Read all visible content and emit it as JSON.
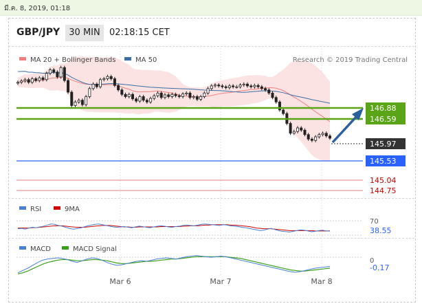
{
  "topbar": {
    "date_text": "มี.ค. 8, 2019, 01:18"
  },
  "header": {
    "symbol": "GBP/JPY",
    "timeframe": "30 MIN",
    "time": "02:18:15 CET"
  },
  "legend": {
    "ma20_label": "MA 20 + Bollinger Bands",
    "ma50_label": "MA 50",
    "credit": "Research © 2019 Trading Central",
    "rsi_label": "RSI",
    "rsi_ma_label": "9MA",
    "macd_label": "MACD",
    "macd_signal_label": "MACD Signal"
  },
  "colors": {
    "green_level": "#5aa517",
    "blue_level": "#2962ff",
    "red_level": "#cc0000",
    "current_price_bg": "#333333",
    "ma20": "#f08080",
    "ma50": "#3a6ea5",
    "arrow": "#2c5f9e",
    "rsi": "#4a7fd4",
    "rsi_ma": "#cc0000",
    "macd": "#4a7fd4",
    "macd_signal": "#3aa017"
  },
  "chart_data": [
    {
      "type": "line",
      "title": "GBP/JPY",
      "x_tick_labels": [
        "Mar 6",
        "Mar 7",
        "Mar 8"
      ],
      "ylim": [
        144.6,
        147.6
      ],
      "price_levels": [
        {
          "value": 146.88,
          "label": "146.88",
          "style": "resistance"
        },
        {
          "value": 146.59,
          "label": "146.59",
          "style": "resistance"
        },
        {
          "value": 145.97,
          "label": "145.97",
          "style": "current"
        },
        {
          "value": 145.53,
          "label": "145.53",
          "style": "support"
        },
        {
          "value": 145.04,
          "label": "145.04",
          "style": "support"
        },
        {
          "value": 144.75,
          "label": "144.75",
          "style": "support"
        }
      ],
      "series": [
        {
          "name": "Close",
          "values": [
            147.22,
            147.25,
            147.28,
            147.22,
            147.3,
            147.26,
            147.32,
            147.28,
            147.42,
            147.5,
            147.45,
            147.34,
            147.55,
            147.26,
            147.0,
            146.7,
            146.78,
            146.82,
            146.72,
            146.9,
            147.08,
            147.18,
            147.12,
            147.28,
            147.3,
            147.35,
            147.3,
            147.15,
            147.05,
            146.95,
            146.9,
            146.95,
            146.85,
            146.8,
            146.9,
            146.82,
            146.78,
            146.86,
            146.92,
            146.98,
            146.88,
            146.94,
            146.9,
            146.95,
            146.92,
            146.9,
            146.96,
            146.98,
            146.88,
            146.9,
            146.84,
            146.9,
            146.98,
            147.08,
            147.14,
            147.16,
            147.14,
            147.12,
            147.1,
            147.14,
            147.12,
            147.12,
            147.16,
            147.18,
            147.14,
            147.12,
            147.15,
            147.12,
            147.08,
            147.05,
            146.98,
            146.88,
            146.78,
            146.6,
            146.52,
            146.3,
            146.08,
            146.12,
            146.2,
            146.15,
            146.05,
            145.95,
            145.92,
            146.0,
            146.05,
            146.08,
            146.02,
            145.97
          ]
        },
        {
          "name": "MA 20",
          "values": []
        },
        {
          "name": "MA 50",
          "values": []
        }
      ]
    },
    {
      "type": "line",
      "ylim": [
        0,
        100
      ],
      "y_tick_labels": [
        "70"
      ],
      "current_value_label": "38.55",
      "series": [
        {
          "name": "RSI",
          "values": [
            45,
            46,
            44,
            47,
            49,
            48,
            50,
            52,
            55,
            58,
            57,
            54,
            52,
            49,
            46,
            44,
            45,
            47,
            50,
            53,
            55,
            57,
            58,
            56,
            54,
            52,
            50,
            49,
            50,
            51,
            49,
            48,
            50,
            52,
            51,
            49,
            48,
            50,
            52,
            53,
            52,
            50,
            49,
            51,
            52,
            54,
            55,
            54,
            53,
            55,
            57,
            58,
            57,
            56,
            55,
            54,
            56,
            55,
            53,
            52,
            51,
            49,
            48,
            46,
            44,
            42,
            40,
            41,
            44,
            46,
            43,
            40,
            38,
            37,
            36,
            38,
            40,
            42,
            41,
            39,
            37,
            38,
            40,
            41,
            39,
            38.55
          ]
        },
        {
          "name": "9MA",
          "values": [
            47,
            47,
            47,
            47,
            48,
            48,
            49,
            50,
            51,
            52,
            53,
            53,
            53,
            52,
            51,
            50,
            49,
            49,
            49,
            50,
            51,
            52,
            53,
            54,
            54,
            54,
            53,
            52,
            51,
            50,
            50,
            49,
            49,
            50,
            50,
            50,
            50,
            50,
            50,
            51,
            51,
            51,
            51,
            51,
            51,
            52,
            52,
            53,
            53,
            53,
            54,
            55,
            55,
            56,
            56,
            56,
            56,
            56,
            55,
            55,
            54,
            53,
            52,
            51,
            49,
            47,
            46,
            45,
            45,
            45,
            44,
            43,
            42,
            41,
            40,
            40,
            40,
            40,
            40,
            40,
            40,
            39,
            39,
            39,
            39,
            39.5
          ]
        }
      ]
    },
    {
      "type": "line",
      "y_tick_labels": [
        "0"
      ],
      "current_value_label": "-0.17",
      "series": [
        {
          "name": "MACD",
          "values": [
            -0.28,
            -0.24,
            -0.2,
            -0.15,
            -0.1,
            -0.06,
            -0.04,
            -0.03,
            -0.02,
            -0.03,
            -0.05,
            -0.08,
            -0.1,
            -0.07,
            -0.04,
            -0.02,
            -0.03,
            -0.06,
            -0.1,
            -0.13,
            -0.15,
            -0.14,
            -0.12,
            -0.1,
            -0.08,
            -0.07,
            -0.08,
            -0.06,
            -0.04,
            -0.03,
            -0.02,
            -0.03,
            -0.04,
            -0.02,
            0.0,
            0.01,
            0.02,
            0.01,
            0.0,
            -0.01,
            0.0,
            0.01,
            0.0,
            -0.02,
            -0.04,
            -0.06,
            -0.08,
            -0.1,
            -0.12,
            -0.14,
            -0.16,
            -0.18,
            -0.2,
            -0.22,
            -0.24,
            -0.26,
            -0.27,
            -0.26,
            -0.24,
            -0.22,
            -0.2,
            -0.19,
            -0.18,
            -0.17
          ]
        },
        {
          "name": "MACD Signal",
          "values": [
            -0.3,
            -0.28,
            -0.25,
            -0.21,
            -0.17,
            -0.13,
            -0.1,
            -0.08,
            -0.06,
            -0.05,
            -0.05,
            -0.06,
            -0.07,
            -0.07,
            -0.06,
            -0.05,
            -0.05,
            -0.06,
            -0.07,
            -0.09,
            -0.11,
            -0.12,
            -0.12,
            -0.11,
            -0.1,
            -0.09,
            -0.08,
            -0.08,
            -0.07,
            -0.06,
            -0.05,
            -0.04,
            -0.04,
            -0.03,
            -0.02,
            -0.01,
            0.0,
            0.0,
            0.0,
            0.0,
            0.0,
            0.0,
            0.0,
            -0.01,
            -0.02,
            -0.03,
            -0.05,
            -0.07,
            -0.09,
            -0.11,
            -0.13,
            -0.15,
            -0.17,
            -0.19,
            -0.21,
            -0.23,
            -0.24,
            -0.25,
            -0.25,
            -0.24,
            -0.23,
            -0.22,
            -0.21,
            -0.2
          ]
        }
      ]
    }
  ]
}
